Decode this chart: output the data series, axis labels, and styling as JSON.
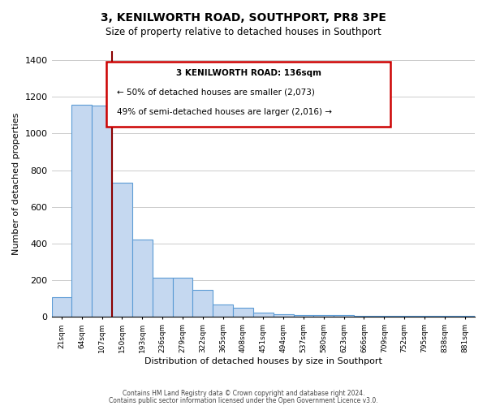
{
  "title": "3, KENILWORTH ROAD, SOUTHPORT, PR8 3PE",
  "subtitle": "Size of property relative to detached houses in Southport",
  "xlabel": "Distribution of detached houses by size in Southport",
  "ylabel": "Number of detached properties",
  "categories": [
    "21sqm",
    "64sqm",
    "107sqm",
    "150sqm",
    "193sqm",
    "236sqm",
    "279sqm",
    "322sqm",
    "365sqm",
    "408sqm",
    "451sqm",
    "494sqm",
    "537sqm",
    "580sqm",
    "623sqm",
    "666sqm",
    "709sqm",
    "752sqm",
    "795sqm",
    "838sqm",
    "881sqm"
  ],
  "bar_values": [
    110,
    1155,
    1150,
    730,
    420,
    215,
    215,
    150,
    70,
    50,
    25,
    15,
    10,
    10,
    10,
    5,
    5,
    5,
    5,
    5,
    5
  ],
  "bar_color": "#c5d8f0",
  "bar_edge_color": "#5b9bd5",
  "vline_x": 3,
  "vline_color": "#8b0000",
  "annotation_line1": "3 KENILWORTH ROAD: 136sqm",
  "annotation_line2": "← 50% of detached houses are smaller (2,073)",
  "annotation_line3": "49% of semi-detached houses are larger (2,016) →",
  "annotation_box_color": "#ffffff",
  "annotation_box_edge": "#cc0000",
  "ylim": [
    0,
    1450
  ],
  "yticks": [
    0,
    200,
    400,
    600,
    800,
    1000,
    1200,
    1400
  ],
  "footer1": "Contains HM Land Registry data © Crown copyright and database right 2024.",
  "footer2": "Contains public sector information licensed under the Open Government Licence v3.0.",
  "background_color": "#ffffff",
  "grid_color": "#cccccc"
}
